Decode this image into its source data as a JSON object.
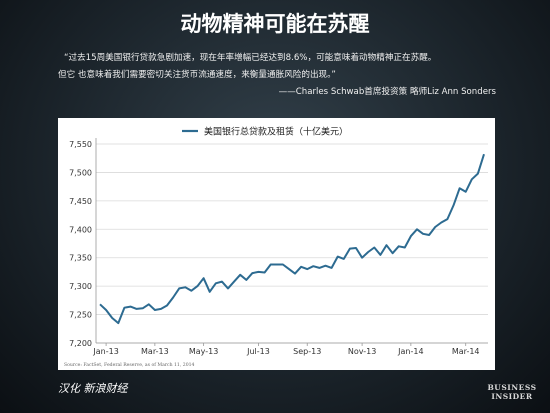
{
  "page": {
    "title": "动物精神可能在苏醒",
    "quote_line1": "“过去15周美国银行贷款急剧加速，现在年率增幅已经达到8.6%，可能意味着动物精神正在苏醒。",
    "quote_line2": "但它 也意味着我们需要密切关注货币流通速度，来衡量通胀风险的出现。”",
    "quote_attribution": "——Charles Schwab首席投资策 略师Liz Ann Sonders",
    "footer_left": "汉化 新浪财经",
    "logo_line1": "BUSINESS",
    "logo_line2": "INSIDER"
  },
  "chart_data": {
    "type": "line",
    "legend": "美国银行总贷款及租赁（十亿美元）",
    "legend_position": "top",
    "source": "Source: FactSet, Federal Reserve, as of March 11, 2014",
    "line_color": "#2d6b91",
    "grid": true,
    "ylim": [
      7200,
      7550
    ],
    "yticks": [
      7200,
      7250,
      7300,
      7350,
      7400,
      7450,
      7500,
      7550
    ],
    "ytick_labels": [
      "7,200",
      "7,250",
      "7,300",
      "7,350",
      "7,400",
      "7,450",
      "7,500",
      "7,550"
    ],
    "xtick_labels": [
      "Jan-13",
      "Mar-13",
      "May-13",
      "Jul-13",
      "Sep-13",
      "Nov-13",
      "Jan-14",
      "Mar-14"
    ],
    "xtick_index": [
      1,
      9,
      17,
      26,
      34,
      43,
      51,
      60
    ],
    "series": [
      {
        "values": [
          7268,
          7258,
          7244,
          7235,
          7262,
          7264,
          7260,
          7261,
          7268,
          7258,
          7260,
          7266,
          7280,
          7296,
          7298,
          7292,
          7300,
          7314,
          7290,
          7305,
          7308,
          7296,
          7308,
          7320,
          7311,
          7323,
          7325,
          7324,
          7338,
          7338,
          7338,
          7330,
          7322,
          7334,
          7330,
          7335,
          7332,
          7336,
          7332,
          7352,
          7348,
          7366,
          7367,
          7350,
          7360,
          7368,
          7355,
          7372,
          7358,
          7370,
          7368,
          7388,
          7400,
          7392,
          7390,
          7404,
          7412,
          7418,
          7442,
          7472,
          7466,
          7488,
          7498,
          7532
        ]
      }
    ]
  }
}
